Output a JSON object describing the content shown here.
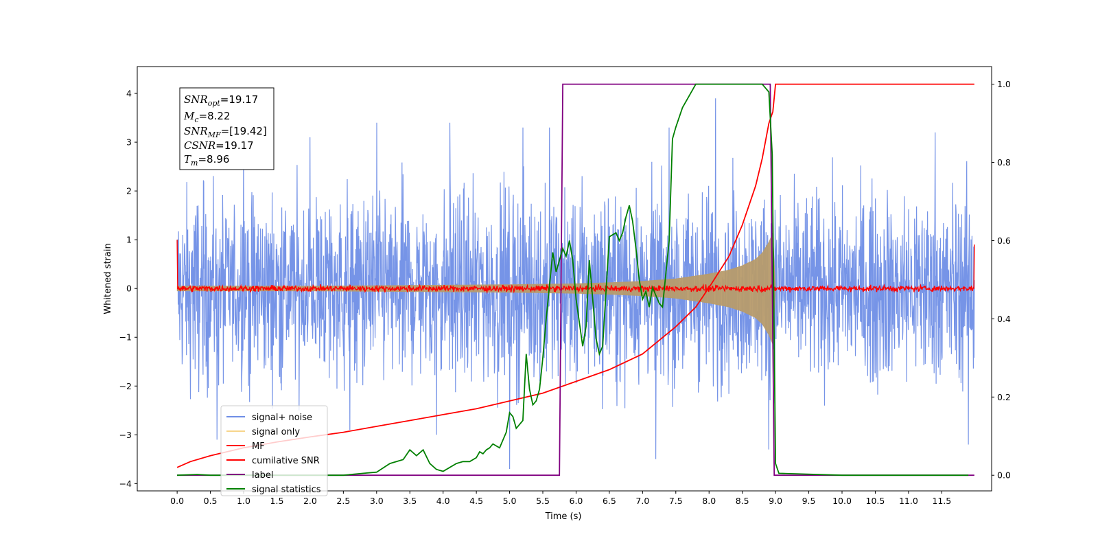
{
  "chart_data": {
    "type": "line",
    "title": "",
    "xlabel": "Time (s)",
    "ylabel": "Whitened strain",
    "ylabel_right": "",
    "xlim": [
      -0.6,
      12.25
    ],
    "ylim": [
      -4.15,
      4.55
    ],
    "y2lim": [
      -0.04,
      1.045
    ],
    "grid": false,
    "legend_position": "lower-left",
    "x_ticks": [
      "0.0",
      "0.5",
      "1.0",
      "1.5",
      "2.0",
      "2.5",
      "3.0",
      "3.5",
      "4.0",
      "4.5",
      "5.0",
      "5.5",
      "6.0",
      "6.5",
      "7.0",
      "7.5",
      "8.0",
      "8.5",
      "9.0",
      "9.5",
      "10.0",
      "10.5",
      "11.0",
      "11.5"
    ],
    "y_ticks": [
      "4",
      "3",
      "2",
      "1",
      "0",
      "−1",
      "−2",
      "−3",
      "−4"
    ],
    "y2_ticks": [
      "1.0",
      "0.8",
      "0.6",
      "0.4",
      "0.2",
      "0.0"
    ],
    "colors": {
      "signal_noise": "#6f8ee6",
      "signal_only": "#b79b6c",
      "signal_only_legend": "#f7d58b",
      "mf": "#ff0000",
      "cumulative_snr": "#ff0000",
      "label": "#800080",
      "signal_statistics": "#008000"
    },
    "annotation": {
      "snr_opt_main": "SNR",
      "snr_opt_sub": "opt",
      "snr_opt_value": "=19.17",
      "mc_main": "M",
      "mc_sub": "c",
      "mc_value": "=8.22",
      "snr_mf_main": "SNR",
      "snr_mf_sub": "MF",
      "snr_mf_value": "=[19.42]",
      "csnr_main": "CSNR",
      "csnr_value": "=19.17",
      "tm_main": "T",
      "tm_sub": "m",
      "tm_value": "=8.96"
    },
    "series": [
      {
        "name": "signal+ noise",
        "axis": "left",
        "style": "noise",
        "x_range": [
          0.0,
          11.99
        ],
        "envelope_y": [
          -2.5,
          2.7
        ],
        "peak_values": [
          [
            1.0,
            3.0
          ],
          [
            2.0,
            3.1
          ],
          [
            3.0,
            3.4
          ],
          [
            4.1,
            3.4
          ],
          [
            5.2,
            3.3
          ],
          [
            5.6,
            3.3
          ],
          [
            7.4,
            3.3
          ],
          [
            8.1,
            3.9
          ],
          [
            11.4,
            3.2
          ],
          [
            0.6,
            -3.1
          ],
          [
            2.6,
            -2.9
          ],
          [
            3.9,
            -3.0
          ],
          [
            5.0,
            -3.7
          ],
          [
            7.2,
            -3.5
          ],
          [
            8.9,
            -3.3
          ],
          [
            11.9,
            -3.2
          ]
        ]
      },
      {
        "name": "signal only",
        "axis": "left",
        "style": "chirp",
        "x": [
          0.0,
          1.0,
          2.0,
          3.0,
          4.0,
          5.0,
          6.0,
          6.5,
          7.0,
          7.5,
          8.0,
          8.3,
          8.5,
          8.7,
          8.8,
          8.9,
          8.96,
          9.0
        ],
        "amplitude": [
          0.05,
          0.05,
          0.05,
          0.06,
          0.07,
          0.08,
          0.1,
          0.12,
          0.15,
          0.2,
          0.3,
          0.38,
          0.47,
          0.6,
          0.73,
          0.95,
          1.15,
          0.0
        ]
      },
      {
        "name": "MF",
        "axis": "left",
        "style": "noise",
        "x_range": [
          0.0,
          11.99
        ],
        "envelope_y": [
          -0.08,
          0.09
        ],
        "edge_values": [
          [
            0.0,
            1.0
          ],
          [
            11.99,
            0.9
          ]
        ]
      },
      {
        "name": "cumilative SNR",
        "axis": "right",
        "x": [
          0.0,
          0.2,
          0.5,
          1.0,
          1.5,
          2.0,
          2.5,
          3.0,
          3.5,
          4.0,
          4.5,
          5.0,
          5.5,
          6.0,
          6.5,
          7.0,
          7.5,
          7.8,
          8.0,
          8.3,
          8.5,
          8.7,
          8.8,
          8.9,
          8.96,
          9.0,
          11.99
        ],
        "values": [
          0.02,
          0.035,
          0.05,
          0.07,
          0.085,
          0.098,
          0.11,
          0.125,
          0.14,
          0.155,
          0.17,
          0.19,
          0.21,
          0.24,
          0.27,
          0.31,
          0.38,
          0.43,
          0.48,
          0.56,
          0.64,
          0.74,
          0.81,
          0.9,
          0.93,
          1.0,
          1.0
        ]
      },
      {
        "name": "label",
        "axis": "right",
        "x": [
          0.0,
          5.75,
          5.8,
          8.92,
          8.98,
          11.99
        ],
        "values": [
          0.0,
          0.0,
          1.0,
          1.0,
          0.0,
          0.0
        ]
      },
      {
        "name": "signal statistics",
        "axis": "right",
        "x": [
          0.0,
          0.3,
          0.5,
          1.0,
          1.5,
          2.0,
          2.5,
          2.8,
          3.0,
          3.2,
          3.4,
          3.5,
          3.6,
          3.7,
          3.8,
          3.9,
          4.0,
          4.1,
          4.2,
          4.3,
          4.4,
          4.5,
          4.55,
          4.6,
          4.65,
          4.7,
          4.75,
          4.85,
          4.95,
          5.0,
          5.05,
          5.1,
          5.2,
          5.25,
          5.3,
          5.35,
          5.4,
          5.45,
          5.5,
          5.55,
          5.65,
          5.7,
          5.8,
          5.85,
          5.9,
          5.95,
          6.0,
          6.1,
          6.15,
          6.2,
          6.25,
          6.3,
          6.35,
          6.4,
          6.45,
          6.5,
          6.6,
          6.65,
          6.7,
          6.75,
          6.8,
          6.85,
          6.9,
          6.95,
          7.0,
          7.05,
          7.1,
          7.15,
          7.2,
          7.25,
          7.3,
          7.4,
          7.45,
          7.5,
          7.6,
          7.7,
          7.8,
          7.9,
          8.0,
          8.2,
          8.3,
          8.5,
          8.7,
          8.8,
          8.9,
          8.95,
          9.0,
          9.05,
          10.0,
          11.0,
          11.9
        ],
        "values": [
          0.0,
          0.002,
          0.0,
          0.0,
          0.0,
          0.0,
          0.0,
          0.005,
          0.008,
          0.03,
          0.04,
          0.065,
          0.05,
          0.065,
          0.03,
          0.015,
          0.01,
          0.02,
          0.03,
          0.035,
          0.035,
          0.045,
          0.06,
          0.055,
          0.065,
          0.07,
          0.08,
          0.07,
          0.11,
          0.16,
          0.15,
          0.12,
          0.14,
          0.31,
          0.22,
          0.18,
          0.19,
          0.22,
          0.3,
          0.4,
          0.57,
          0.52,
          0.58,
          0.56,
          0.6,
          0.55,
          0.45,
          0.33,
          0.38,
          0.55,
          0.45,
          0.35,
          0.31,
          0.33,
          0.47,
          0.61,
          0.62,
          0.6,
          0.62,
          0.66,
          0.69,
          0.65,
          0.58,
          0.5,
          0.45,
          0.47,
          0.43,
          0.48,
          0.46,
          0.44,
          0.43,
          0.6,
          0.86,
          0.89,
          0.94,
          0.97,
          1.0,
          1.0,
          1.0,
          1.0,
          1.0,
          1.0,
          1.0,
          1.0,
          0.98,
          0.82,
          0.03,
          0.005,
          0.0,
          0.0,
          0.0
        ]
      }
    ]
  }
}
